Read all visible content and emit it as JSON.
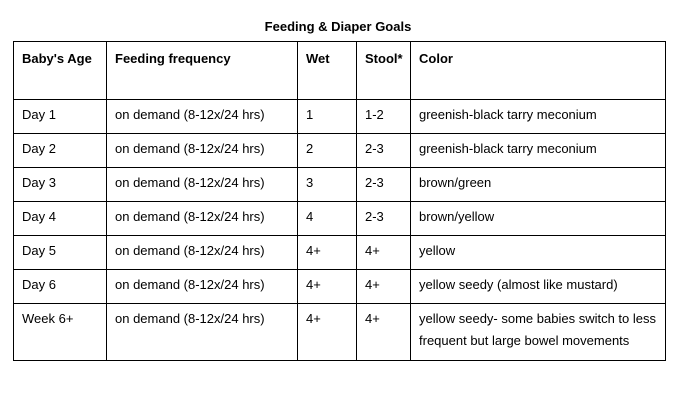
{
  "title": "Feeding & Diaper Goals",
  "table": {
    "headers": [
      "Baby's Age",
      "Feeding frequency",
      "Wet",
      "Stool*",
      "Color"
    ],
    "rows": [
      [
        "Day 1",
        "on demand (8-12x/24 hrs)",
        "1",
        "1-2",
        "greenish-black tarry meconium"
      ],
      [
        "Day 2",
        "on demand (8-12x/24 hrs)",
        "2",
        "2-3",
        "greenish-black tarry meconium"
      ],
      [
        "Day 3",
        "on demand (8-12x/24 hrs)",
        "3",
        "2-3",
        "brown/green"
      ],
      [
        "Day 4",
        "on demand (8-12x/24 hrs)",
        "4",
        "2-3",
        "brown/yellow"
      ],
      [
        "Day 5",
        "on demand (8-12x/24 hrs)",
        "4+",
        "4+",
        "yellow"
      ],
      [
        "Day 6",
        "on demand (8-12x/24 hrs)",
        "4+",
        "4+",
        "yellow seedy (almost like mustard)"
      ],
      [
        "Week 6+",
        "on demand (8-12x/24 hrs)",
        "4+",
        "4+",
        "yellow seedy- some babies switch to less frequent but large bowel movements"
      ]
    ]
  }
}
